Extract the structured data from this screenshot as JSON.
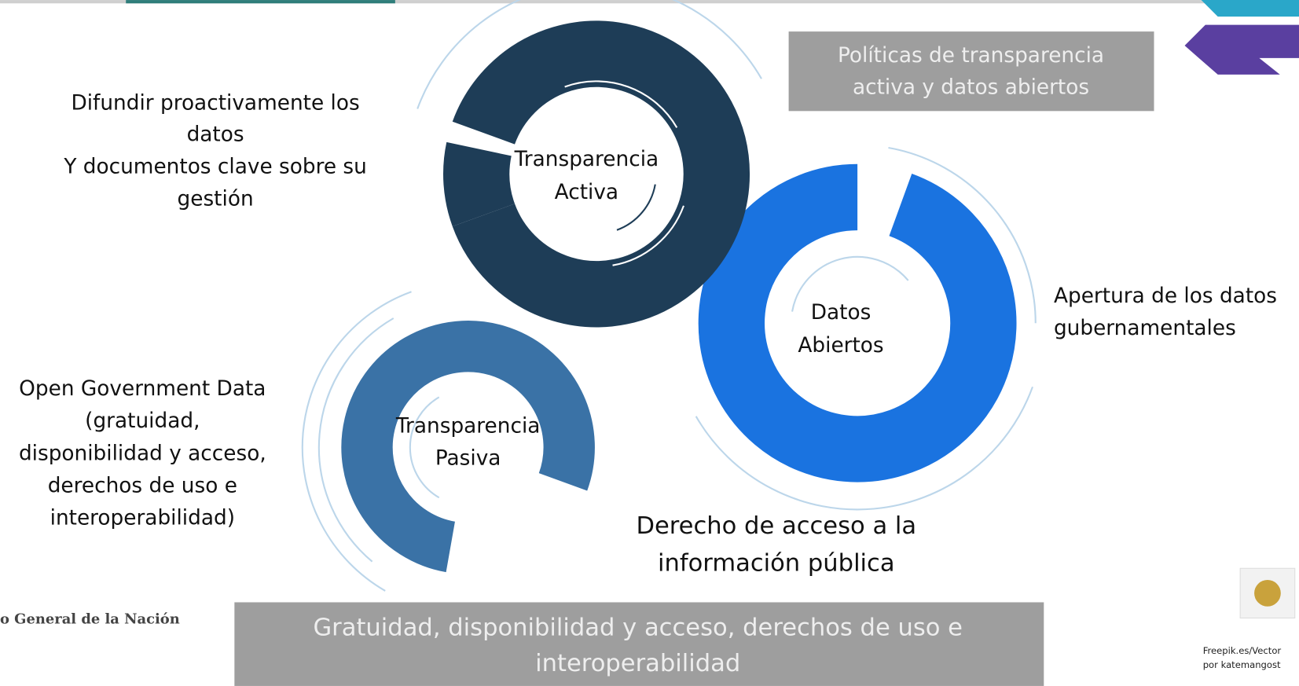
{
  "nodes": [
    {
      "label_lines": [
        "Transparencia",
        "Activa"
      ]
    },
    {
      "label_lines": [
        "Datos",
        "Abiertos"
      ]
    },
    {
      "label_lines": [
        "Transparencia",
        "Pasiva"
      ]
    }
  ],
  "descriptions": [
    {
      "lines": [
        "Difundir proactivamente los",
        "datos",
        "Y documentos clave sobre su",
        "gestión"
      ]
    },
    {
      "lines": [
        "Apertura de los datos",
        "gubernamentales"
      ]
    },
    {
      "lines": [
        "Open Government Data",
        "(gratuidad,",
        "disponibilidad y acceso,",
        "derechos de uso e",
        "interoperabilidad)"
      ]
    },
    {
      "lines": [
        "Derecho de acceso a la",
        "información pública"
      ]
    }
  ],
  "banners": [
    {
      "lines": [
        "Políticas de transparencia",
        "activa y datos abiertos"
      ]
    },
    {
      "lines": [
        "Gratuidad, disponibilidad y acceso, derechos de uso e",
        "interoperabilidad"
      ]
    }
  ],
  "footer": {
    "organization": "o General de la Nación",
    "credit_lines": [
      "Freepik.es/Vector",
      "por katemangost"
    ]
  }
}
